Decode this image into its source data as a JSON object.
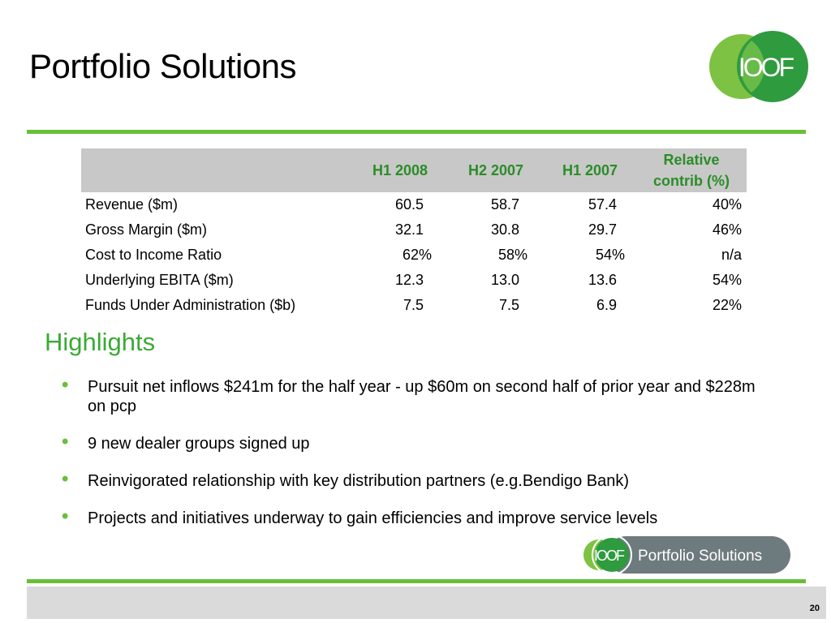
{
  "slide": {
    "title": "Portfolio Solutions",
    "page_number": "20"
  },
  "logo": {
    "text": "IOOF",
    "colors": {
      "light_green": "#7dc242",
      "dark_green": "#2e9b3e",
      "white": "#ffffff"
    }
  },
  "table": {
    "headers": [
      "",
      "H1 2008",
      "H2 2007",
      "H1 2007",
      "Relative contrib (%)"
    ],
    "header_lines": {
      "relative_line1": "Relative",
      "relative_line2": "contrib (%)"
    },
    "rows": [
      {
        "label": "Revenue ($m)",
        "h1_2008": "60.5",
        "h2_2007": "58.7",
        "h1_2007": "57.4",
        "contrib": "40%"
      },
      {
        "label": "Gross Margin ($m)",
        "h1_2008": "32.1",
        "h2_2007": "30.8",
        "h1_2007": "29.7",
        "contrib": "46%"
      },
      {
        "label": "Cost to Income Ratio",
        "h1_2008": "62%",
        "h2_2007": "58%",
        "h1_2007": "54%",
        "contrib": "n/a"
      },
      {
        "label": "Underlying EBITA ($m)",
        "h1_2008": "12.3",
        "h2_2007": "13.0",
        "h1_2007": "13.6",
        "contrib": "54%"
      },
      {
        "label": "Funds Under Administration ($b)",
        "h1_2008": "7.5",
        "h2_2007": "7.5",
        "h1_2007": "6.9",
        "contrib": "22%"
      }
    ],
    "header_bg": "#c8c8c8",
    "header_text_color": "#2a8d27"
  },
  "highlights": {
    "heading": "Highlights",
    "bullets": [
      "Pursuit net inflows $241m for the half year - up $60m on second half of prior year and $228m on pcp",
      "9 new dealer groups signed up",
      "Reinvigorated relationship with key distribution partners (e.g.Bendigo Bank)",
      "Projects and initiatives underway to gain efficiencies and improve service levels"
    ],
    "bullet_glyph": "•"
  },
  "footer_logo": {
    "brand": "IOOF",
    "product": "Portfolio Solutions",
    "pill_color": "#6e7b7e"
  },
  "accent_colors": {
    "rule": "#6abf3a",
    "heading": "#3aaa35",
    "footer_band": "#dadada"
  }
}
